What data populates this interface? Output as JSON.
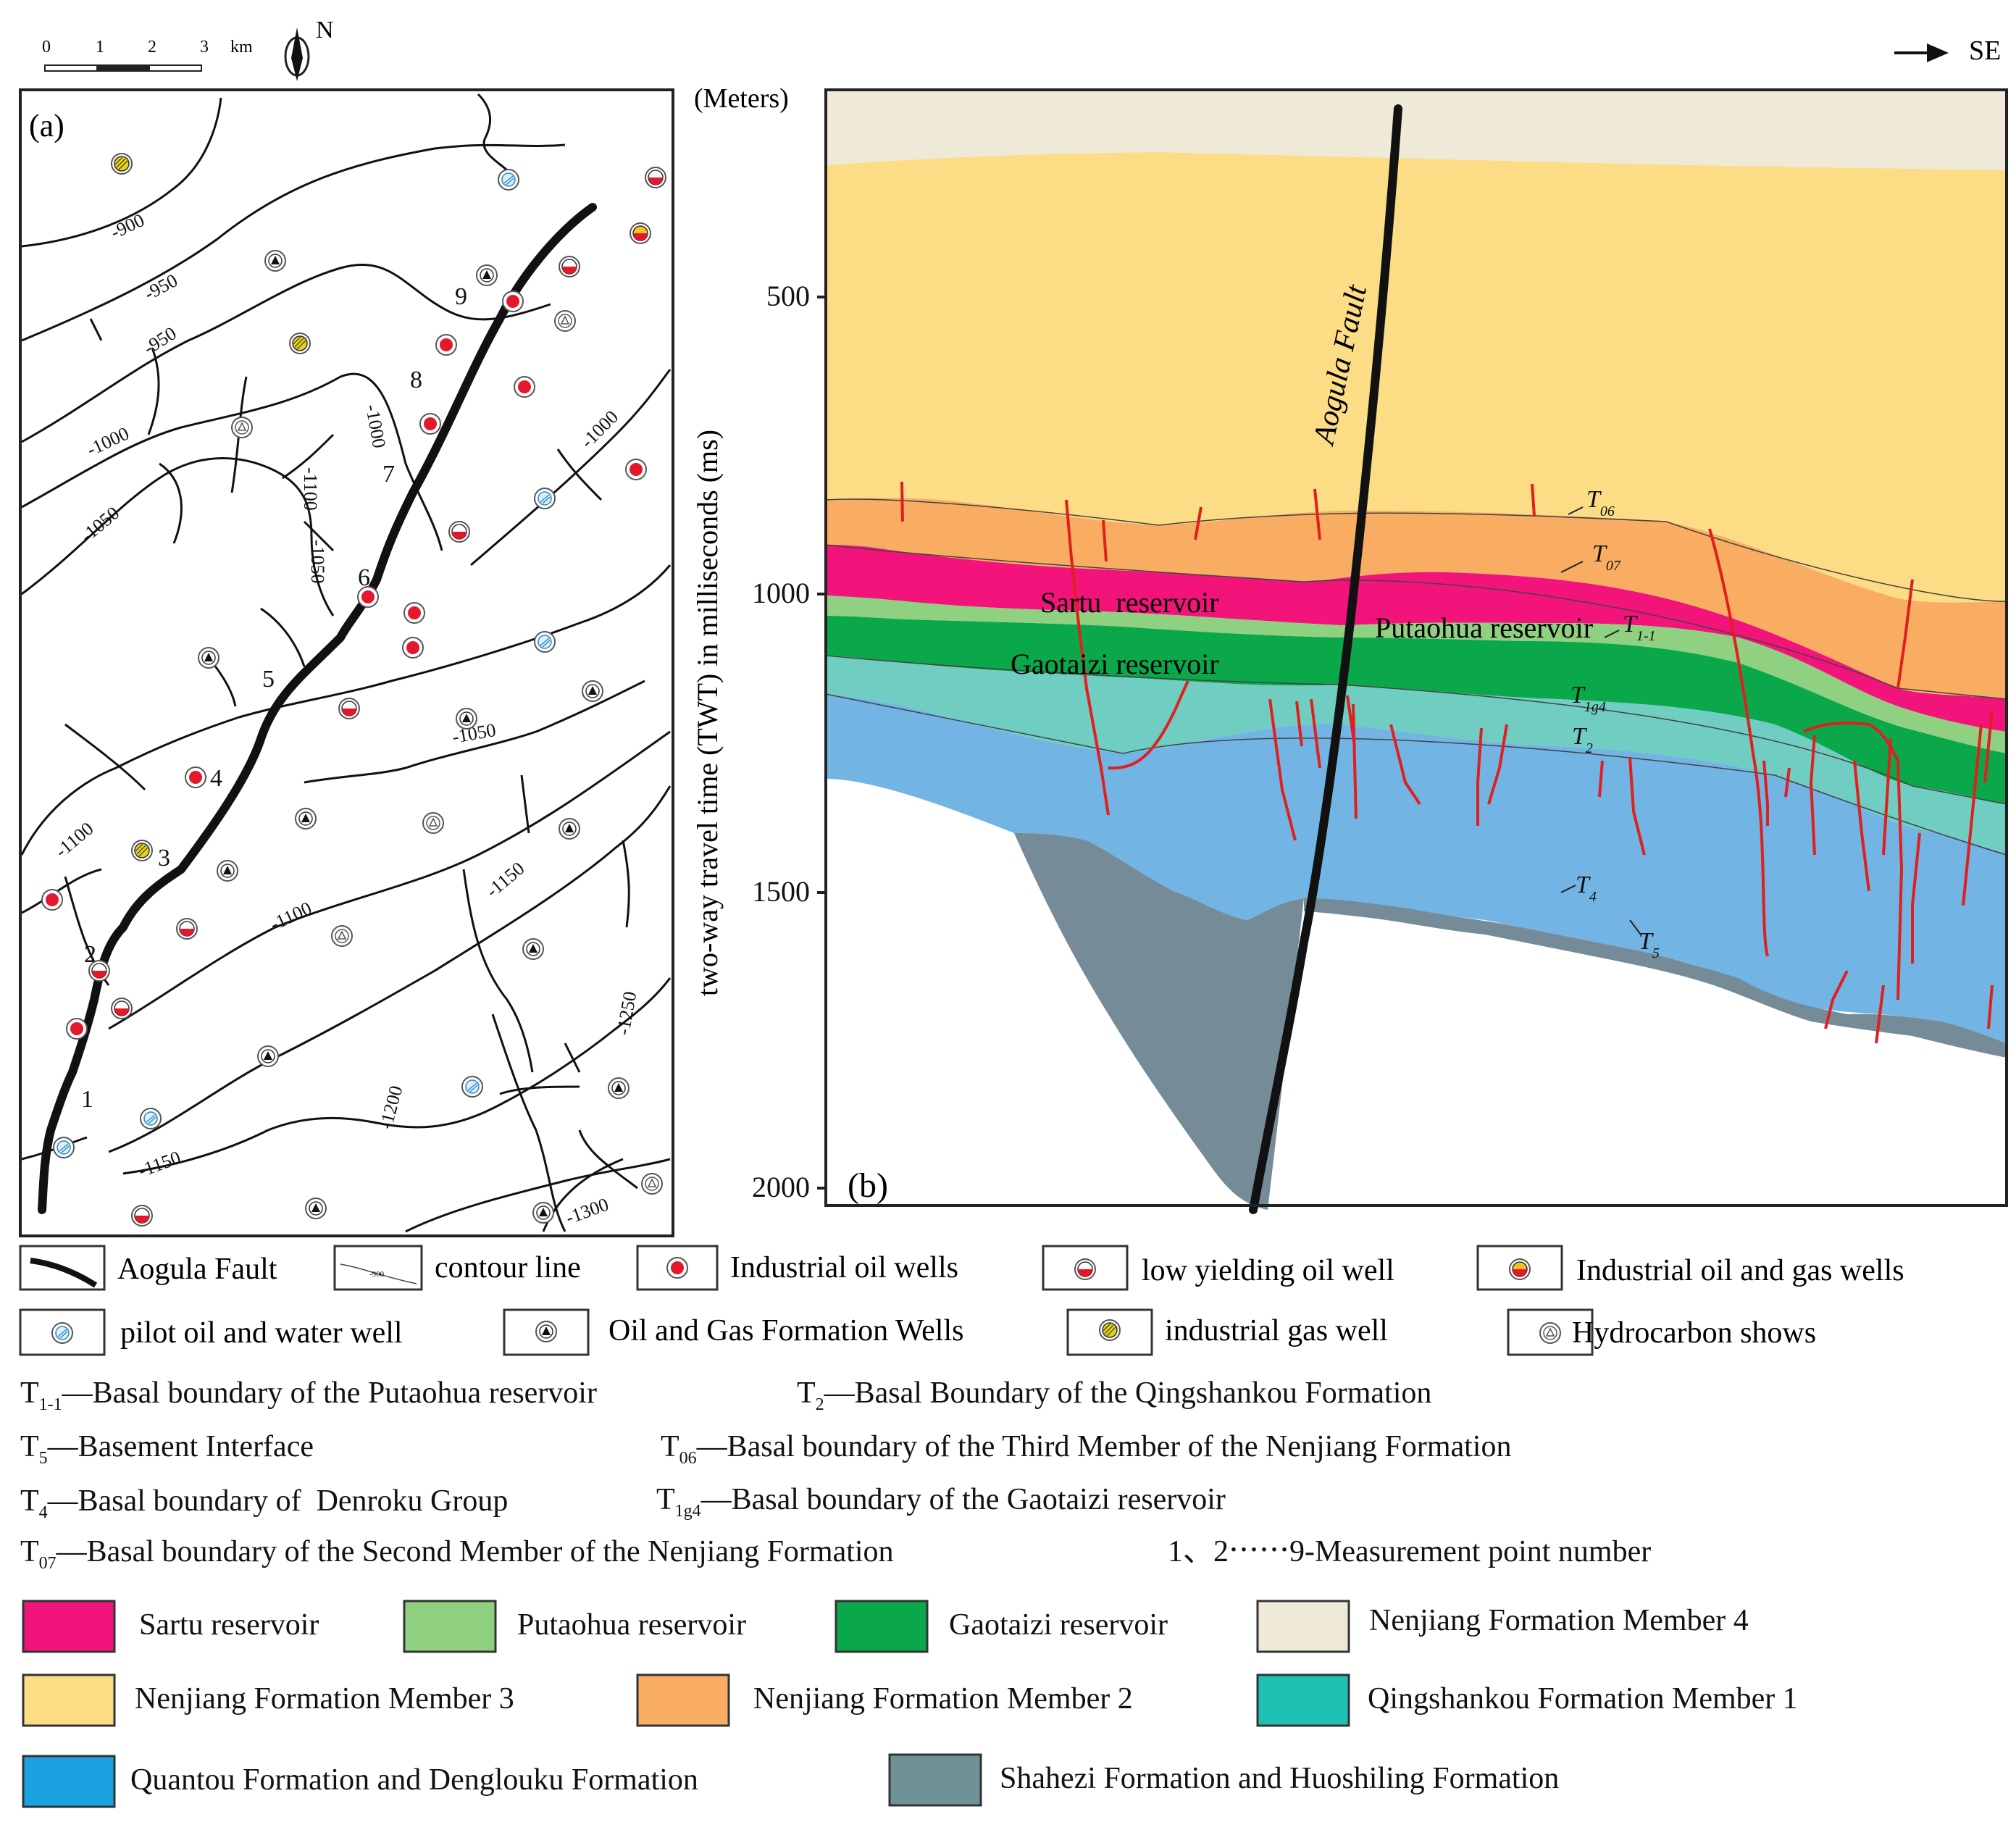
{
  "scale_bar": {
    "ticks": [
      "0",
      "1",
      "2",
      "3"
    ],
    "unit": "km",
    "north": "N"
  },
  "direction": {
    "label": "SE"
  },
  "map": {
    "label": "(a)",
    "contours": [
      "-900",
      "-950",
      "-950",
      "-1000",
      "-1000",
      "-1050",
      "-1050",
      "-1100",
      "-1000",
      "-1050",
      "-1100",
      "-1100",
      "-1150",
      "-1150",
      "-1200",
      "-1250",
      "-1300"
    ],
    "points": [
      "1",
      "2",
      "3",
      "4",
      "5",
      "6",
      "7",
      "8",
      "9"
    ]
  },
  "section": {
    "label": "(b)",
    "units": "(Meters)",
    "y_axis_title": "two-way travel time (TWT) in milliseconds (ms)",
    "y_ticks": [
      "500",
      "1000",
      "1500",
      "2000"
    ],
    "fault_label": "Aogula Fault",
    "reservoirs": [
      "Sartu  reservoir",
      "Putaohua reservoir",
      "Gaotaizi reservoir"
    ],
    "horizons": [
      {
        "main": "T",
        "sub": "06"
      },
      {
        "main": "T",
        "sub": "07"
      },
      {
        "main": "T",
        "sub": "1-1"
      },
      {
        "main": "T",
        "sub": "1g4"
      },
      {
        "main": "T",
        "sub": "2"
      },
      {
        "main": "T",
        "sub": "4"
      },
      {
        "main": "T",
        "sub": "5"
      }
    ]
  },
  "well_legend": [
    {
      "label": "Aogula Fault",
      "icon": "fault-line-icon"
    },
    {
      "label": "contour line",
      "icon": "contour-line-icon",
      "sample": "-900"
    },
    {
      "label": "Industrial oil wells",
      "icon": "industrial-oil-well-icon"
    },
    {
      "label": "low yielding oil well",
      "icon": "low-yielding-oil-well-icon"
    },
    {
      "label": "Industrial oil and gas wells",
      "icon": "industrial-oil-gas-well-icon"
    },
    {
      "label": "pilot oil and water well",
      "icon": "pilot-oil-water-well-icon"
    },
    {
      "label": "Oil and Gas Formation Wells",
      "icon": "oil-gas-formation-well-icon"
    },
    {
      "label": "industrial gas well",
      "icon": "industrial-gas-well-icon"
    },
    {
      "label": "Hydrocarbon shows",
      "icon": "hydrocarbon-shows-icon"
    }
  ],
  "boundary_notes": [
    {
      "sym": "T",
      "sub": "1-1",
      "text": "—Basal boundary of the Putaohua reservoir"
    },
    {
      "sym": "T",
      "sub": "2",
      "text": "—Basal Boundary of the Qingshankou Formation"
    },
    {
      "sym": "T",
      "sub": "5",
      "text": "—Basement Interface"
    },
    {
      "sym": "T",
      "sub": "06",
      "text": "—Basal boundary of the Third Member of the Nenjiang Formation"
    },
    {
      "sym": "T",
      "sub": "4",
      "text": "—Basal boundary of  Denroku Group"
    },
    {
      "sym": "T",
      "sub": "1g4",
      "text": "—Basal boundary of the Gaotaizi reservoir"
    },
    {
      "sym": "T",
      "sub": "07",
      "text": "—Basal boundary of the Second Member of the Nenjiang Formation"
    },
    {
      "sym": "",
      "sub": "",
      "text": "1、2⋯⋯9-Measurement point number"
    }
  ],
  "strata_legend": [
    {
      "label": "Sartu reservoir",
      "color": "#f2137b"
    },
    {
      "label": "Putaohua reservoir",
      "color": "#8fd081"
    },
    {
      "label": "Gaotaizi reservoir",
      "color": "#0aa84a"
    },
    {
      "label": "Nenjiang Formation Member 4",
      "color": "#efe9d8"
    },
    {
      "label": "Nenjiang Formation Member 3",
      "color": "#fcdc85"
    },
    {
      "label": "Nenjiang Formation Member 2",
      "color": "#f9ad62"
    },
    {
      "label": "Qingshankou Formation Member 1",
      "color": "#1dc1b4"
    },
    {
      "label": "Quantou Formation and Denglouku Formation",
      "color": "#1aa3e0"
    },
    {
      "label": "Shahezi Formation and Huoshiling Formation",
      "color": "#6f9296"
    }
  ]
}
